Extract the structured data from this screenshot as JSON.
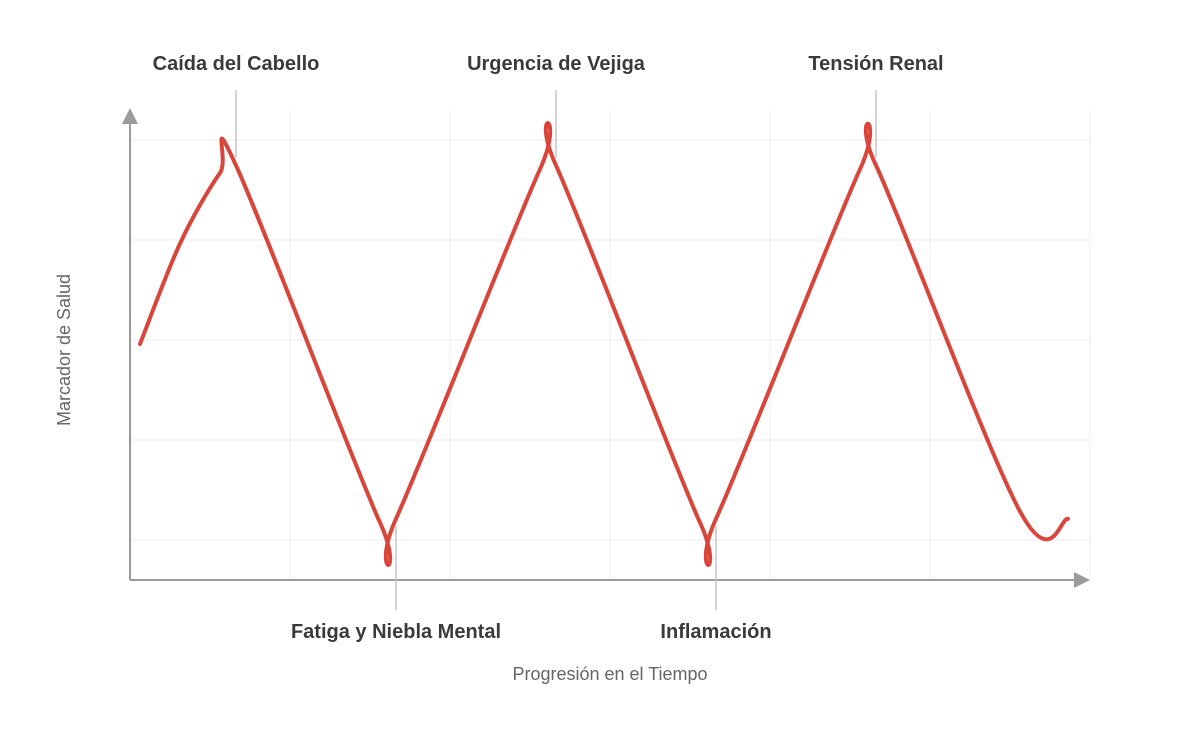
{
  "chart_data": {
    "type": "line",
    "xlabel": "Progresión en el Tiempo",
    "ylabel": "Marcador de Salud",
    "grid": true,
    "legend": "none",
    "line_color": "#d9453a",
    "axis_color": "#9a9a9a",
    "grid_color": "#eeeeee",
    "series": [
      {
        "points": [
          [
            0.0,
            0.5
          ],
          [
            0.5,
            0.77
          ],
          [
            1.0,
            0.96
          ],
          [
            1.2,
            0.98
          ],
          [
            3.0,
            0.02
          ],
          [
            3.2,
            0.03
          ],
          [
            5.0,
            0.97
          ],
          [
            5.2,
            0.98
          ],
          [
            7.0,
            0.02
          ],
          [
            7.2,
            0.03
          ],
          [
            9.0,
            0.97
          ],
          [
            9.2,
            0.98
          ],
          [
            11.0,
            0.05
          ],
          [
            11.6,
            0.03
          ]
        ]
      }
    ],
    "annotations": [
      {
        "x": 1.2,
        "y": 0.98,
        "position": "top",
        "text": "Caída del Cabello"
      },
      {
        "x": 3.2,
        "y": 0.03,
        "position": "bottom",
        "text": "Fatiga y Niebla Mental"
      },
      {
        "x": 5.2,
        "y": 0.98,
        "position": "top",
        "text": "Urgencia de Vejiga"
      },
      {
        "x": 7.2,
        "y": 0.03,
        "position": "bottom",
        "text": "Inflamación"
      },
      {
        "x": 9.2,
        "y": 0.98,
        "position": "top",
        "text": "Tensión Renal"
      }
    ]
  }
}
